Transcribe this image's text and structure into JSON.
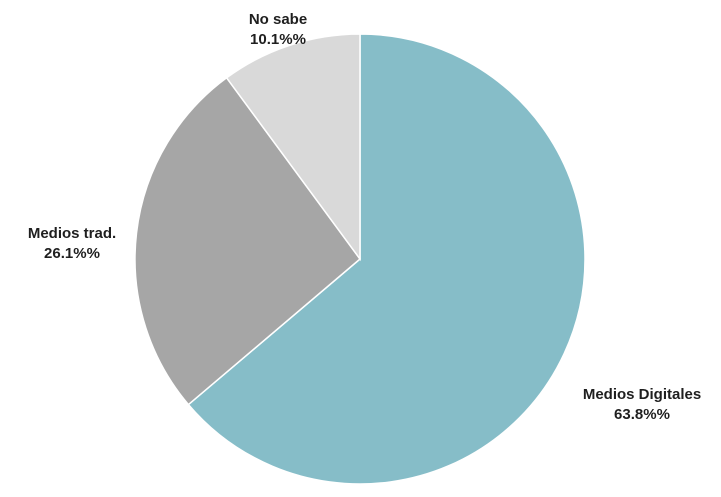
{
  "chart_data": {
    "type": "pie",
    "title": "",
    "slices": [
      {
        "label": "Medios Digitales",
        "value": 63.8,
        "value_text": "63.8%%",
        "color": "#86bdc8"
      },
      {
        "label": "Medios trad.",
        "value": 26.1,
        "value_text": "26.1%%",
        "color": "#a6a6a6"
      },
      {
        "label": "No sabe",
        "value": 10.1,
        "value_text": "10.1%%",
        "color": "#d9d9d9"
      }
    ],
    "start_angle": "12 o'clock",
    "direction": "clockwise",
    "legend": "none"
  }
}
